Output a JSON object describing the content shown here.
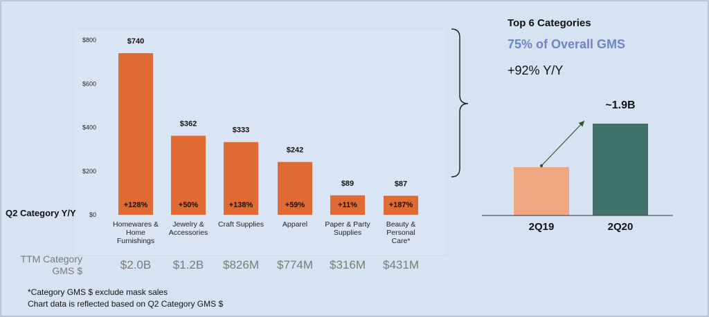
{
  "chart_data": [
    {
      "type": "bar",
      "categories": [
        [
          "Homewares &",
          "Home",
          "Furnishings"
        ],
        [
          "Jewelry &",
          "Accessories"
        ],
        [
          "Craft Supplies"
        ],
        [
          "Apparel"
        ],
        [
          "Paper & Party",
          "Supplies"
        ],
        [
          "Beauty &",
          "Personal",
          "Care*"
        ]
      ],
      "values": [
        740,
        362,
        333,
        242,
        89,
        87
      ],
      "value_labels": [
        "$740",
        "$362",
        "$333",
        "$242",
        "$89",
        "$87"
      ],
      "yoy_labels": [
        "+128%",
        "+50%",
        "+138%",
        "+59%",
        "+11%",
        "+187%"
      ],
      "yoy_row_label": "Q2 Category Y/Y",
      "ttm_row_label": [
        "TTM Category",
        "GMS $"
      ],
      "ttm_values": [
        "$2.0B",
        "$1.2B",
        "$826M",
        "$774M",
        "$316M",
        "$431M"
      ],
      "y_ticks": [
        "$0",
        "$200",
        "$400",
        "$600",
        "$800"
      ],
      "ylim": [
        0,
        800
      ],
      "grid": false,
      "color": "#e06a34"
    },
    {
      "type": "bar",
      "categories": [
        "2Q19",
        "2Q20"
      ],
      "values": [
        1.0,
        1.9
      ],
      "bar_colors": [
        "#f1a682",
        "#3f7268"
      ],
      "value_label": "~1.9B",
      "arrow": true
    }
  ],
  "summary": {
    "title": "Top 6 Categories",
    "highlight": "75% of Overall GMS",
    "growth": "+92% Y/Y",
    "highlight_color": "#6f84c4"
  },
  "footnotes": [
    "*Category GMS $ exclude mask sales",
    "Chart data is reflected based on Q2 Category GMS $"
  ]
}
